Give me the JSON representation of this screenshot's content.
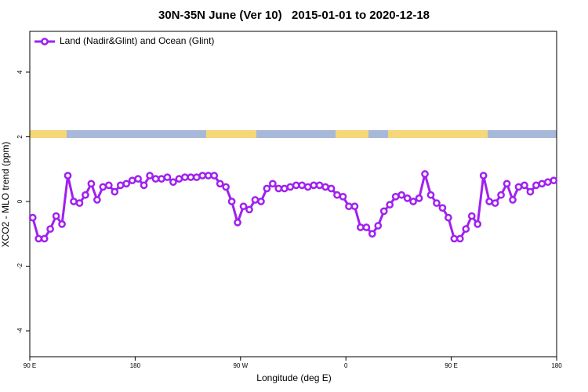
{
  "chart_data": {
    "type": "line",
    "title": "30N-35N June (Ver 10)   2015-01-01 to 2020-12-18",
    "x_label": "Longitude (deg E)",
    "y_label": "XCO2 - MLO trend (ppm)",
    "x": [
      92.5,
      97.5,
      102.5,
      107.5,
      112.5,
      117.5,
      122.5,
      127.5,
      132.5,
      137.5,
      142.5,
      147.5,
      152.5,
      157.5,
      162.5,
      167.5,
      172.5,
      177.5,
      182.5,
      187.5,
      192.5,
      197.5,
      202.5,
      207.5,
      212.5,
      217.5,
      222.5,
      227.5,
      232.5,
      237.5,
      242.5,
      247.5,
      252.5,
      257.5,
      262.5,
      267.5,
      272.5,
      277.5,
      282.5,
      287.5,
      292.5,
      297.5,
      302.5,
      307.5,
      312.5,
      317.5,
      322.5,
      327.5,
      332.5,
      337.5,
      342.5,
      347.5,
      352.5,
      357.5,
      362.5,
      367.5,
      372.5,
      377.5,
      382.5,
      387.5,
      392.5,
      397.5,
      402.5,
      407.5,
      412.5,
      417.5,
      422.5,
      427.5,
      432.5,
      437.5,
      442.5,
      447.5,
      452.5,
      457.5,
      462.5,
      467.5,
      472.5,
      477.5,
      482.5,
      487.5,
      492.5,
      497.5,
      502.5,
      507.5,
      512.5,
      517.5,
      522.5,
      527.5,
      532.5,
      537.5
    ],
    "series": [
      {
        "name": "Land (Nadir&Glint) and Ocean (Glint)",
        "color": "#a020f0",
        "values": [
          -0.5,
          -1.15,
          -1.15,
          -0.85,
          -0.45,
          -0.7,
          0.8,
          0.0,
          -0.05,
          0.2,
          0.55,
          0.05,
          0.45,
          0.5,
          0.3,
          0.5,
          0.55,
          0.65,
          0.7,
          0.5,
          0.8,
          0.7,
          0.7,
          0.75,
          0.6,
          0.7,
          0.75,
          0.75,
          0.75,
          0.8,
          0.8,
          0.8,
          0.55,
          0.45,
          0.0,
          -0.65,
          -0.15,
          -0.25,
          0.05,
          0.0,
          0.4,
          0.55,
          0.4,
          0.4,
          0.45,
          0.5,
          0.5,
          0.45,
          0.5,
          0.5,
          0.45,
          0.4,
          0.2,
          0.15,
          -0.15,
          -0.15,
          -0.8,
          -0.8,
          -1.0,
          -0.75,
          -0.3,
          -0.1,
          0.15,
          0.2,
          0.1,
          0.0,
          0.1,
          0.85,
          0.2,
          -0.05,
          -0.2,
          -0.5,
          -1.15,
          -1.15,
          -0.85,
          -0.45,
          -0.7,
          0.8,
          0.0,
          -0.05,
          0.2,
          0.55,
          0.05,
          0.45,
          0.5,
          0.3,
          0.5,
          0.55,
          0.6,
          0.65
        ]
      }
    ],
    "xlim": [
      90,
      540
    ],
    "xticks": [
      {
        "value": 90,
        "label": "90 E"
      },
      180,
      {
        "value": 270,
        "label": "90 W"
      },
      {
        "value": 360,
        "label": "0"
      },
      {
        "value": 450,
        "label": "90 E"
      },
      {
        "value": 540,
        "label": "180"
      }
    ],
    "ylim": [
      -4.8,
      5.26
    ],
    "yticks": [
      -4,
      -2,
      0,
      2,
      4
    ],
    "legend": "topleft"
  }
}
